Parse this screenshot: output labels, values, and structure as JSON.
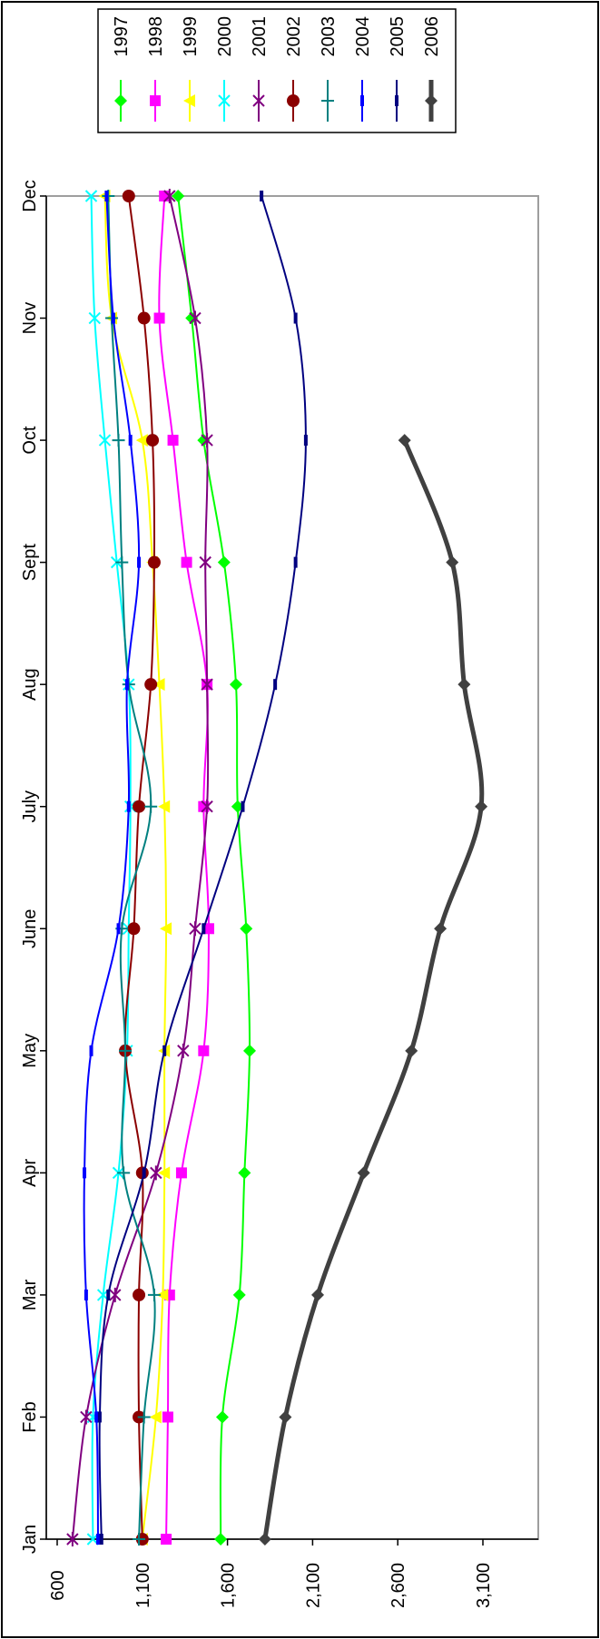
{
  "chart_data": {
    "type": "line",
    "title": "",
    "xlabel": "",
    "ylabel": "",
    "orientation": "rotated-90-clockwise",
    "categories": [
      "Jan",
      "Feb",
      "Mar",
      "Apr",
      "May",
      "June",
      "July",
      "Aug",
      "Sept",
      "Oct",
      "Nov",
      "Dec"
    ],
    "ylim": [
      600,
      3100
    ],
    "yticks": [
      "600",
      "1,100",
      "1,600",
      "2,100",
      "2,600",
      "3,100"
    ],
    "ytick_values": [
      600,
      1100,
      1600,
      2100,
      2600,
      3100
    ],
    "grid": false,
    "legend_placement": "top-right",
    "series": [
      {
        "name": "1997",
        "color": "#00ff00",
        "marker": "diamond",
        "stroke": 2,
        "values": [
          1560,
          1570,
          1670,
          1700,
          1730,
          1710,
          1660,
          1650,
          1580,
          1460,
          1390,
          1310
        ]
      },
      {
        "name": "1998",
        "color": "#ff00ff",
        "marker": "square",
        "stroke": 2,
        "values": [
          1240,
          1250,
          1260,
          1330,
          1460,
          1490,
          1460,
          1480,
          1360,
          1280,
          1200,
          1230
        ]
      },
      {
        "name": "1999",
        "color": "#ffff00",
        "marker": "triangle",
        "stroke": 2,
        "values": [
          1100,
          1180,
          1220,
          1230,
          1230,
          1240,
          1230,
          1200,
          1160,
          1100,
          920,
          880
        ]
      },
      {
        "name": "2000",
        "color": "#00ffff",
        "marker": "x",
        "stroke": 2,
        "values": [
          810,
          810,
          870,
          960,
          1010,
          1020,
          1030,
          1020,
          950,
          880,
          820,
          800
        ]
      },
      {
        "name": "2001",
        "color": "#800080",
        "marker": "star",
        "stroke": 2,
        "values": [
          690,
          770,
          940,
          1180,
          1340,
          1410,
          1480,
          1480,
          1470,
          1480,
          1410,
          1260
        ]
      },
      {
        "name": "2002",
        "color": "#8b0000",
        "marker": "circle",
        "stroke": 2,
        "values": [
          1100,
          1080,
          1080,
          1100,
          1000,
          1050,
          1080,
          1150,
          1170,
          1160,
          1110,
          1020
        ]
      },
      {
        "name": "2003",
        "color": "#008080",
        "marker": "plus",
        "stroke": 2,
        "values": [
          1080,
          1110,
          1170,
          990,
          1000,
          980,
          1150,
          1020,
          980,
          960,
          920,
          900
        ]
      },
      {
        "name": "2004",
        "color": "#0000ff",
        "marker": "dash",
        "stroke": 2,
        "values": [
          840,
          830,
          770,
          760,
          800,
          960,
          1020,
          1010,
          1080,
          1030,
          930,
          890
        ]
      },
      {
        "name": "2005",
        "color": "#000080",
        "marker": "dash",
        "stroke": 2,
        "values": [
          860,
          850,
          900,
          1110,
          1230,
          1460,
          1690,
          1880,
          2000,
          2060,
          2000,
          1800
        ]
      },
      {
        "name": "2006",
        "color": "#404040",
        "marker": "diamond",
        "stroke": 5,
        "values": [
          1820,
          1940,
          2130,
          2400,
          2680,
          2850,
          3090,
          2990,
          2920,
          2640,
          null,
          null
        ]
      }
    ]
  }
}
